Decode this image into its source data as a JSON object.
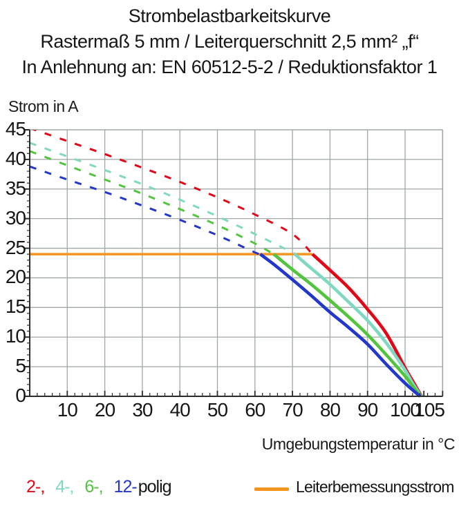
{
  "title": {
    "line1": "Strombelastbarkeitskurve",
    "line2": "Rastermaß 5 mm / Leiterquerschnitt 2,5 mm² „f“",
    "line3": "In Anlehnung an: EN 60512-5-2 / Reduktionsfaktor 1"
  },
  "chart_data": {
    "type": "line",
    "title": "Strombelastbarkeitskurve",
    "xlabel": "Umgebungstemperatur in °C",
    "ylabel": "Strom in A",
    "xlim": [
      0,
      110
    ],
    "ylim": [
      0,
      45
    ],
    "grid": {
      "x_lines": [
        10,
        20,
        30,
        40,
        50,
        60,
        70,
        80,
        90,
        100
      ],
      "y_lines": [
        5,
        10,
        15,
        20,
        25,
        30,
        35,
        40
      ]
    },
    "x_major_ticks": [
      10,
      20,
      30,
      40,
      50,
      60,
      70,
      80,
      90,
      100,
      105
    ],
    "y_major_ticks": [
      0,
      5,
      10,
      15,
      20,
      25,
      30,
      35,
      40,
      45
    ],
    "x_minor_step": 2,
    "y_minor_step": 1,
    "axis_color": "#2b2b2b",
    "grid_color": "#9fa8a4",
    "rated_current_line": {
      "label": "Leiterbemessungsstrom",
      "value_a": 24,
      "t_start_c": 0,
      "t_end_c": 75.3,
      "color": "#f5941f"
    },
    "series": [
      {
        "name": "2-polig",
        "color": "#e30617",
        "dashed_points": [
          [
            0,
            45.3
          ],
          [
            10,
            43.1
          ],
          [
            20,
            40.9
          ],
          [
            30,
            38.6
          ],
          [
            40,
            36.2
          ],
          [
            50,
            33.6
          ],
          [
            60,
            30.7
          ],
          [
            70,
            27.4
          ],
          [
            75.3,
            24
          ]
        ],
        "solid_points": [
          [
            75.3,
            24
          ],
          [
            80,
            21.3
          ],
          [
            85,
            18.3
          ],
          [
            90,
            14.7
          ],
          [
            95,
            10.6
          ],
          [
            100,
            4.8
          ],
          [
            102,
            2.6
          ],
          [
            104.4,
            0
          ]
        ]
      },
      {
        "name": "4-polig",
        "color": "#80d8c3",
        "dashed_points": [
          [
            0,
            42.8
          ],
          [
            10,
            40.5
          ],
          [
            20,
            38.2
          ],
          [
            30,
            35.8
          ],
          [
            40,
            33.2
          ],
          [
            50,
            30.4
          ],
          [
            60,
            27.4
          ],
          [
            70,
            24.3
          ],
          [
            70.6,
            24
          ]
        ],
        "solid_points": [
          [
            70.6,
            24
          ],
          [
            75,
            21.6
          ],
          [
            80,
            18.9
          ],
          [
            85,
            15.9
          ],
          [
            90,
            12.8
          ],
          [
            95,
            9.0
          ],
          [
            100,
            4.4
          ],
          [
            102,
            2.2
          ],
          [
            104.3,
            0
          ]
        ]
      },
      {
        "name": "6-polig",
        "color": "#52c43e",
        "dashed_points": [
          [
            0,
            41.4
          ],
          [
            10,
            39.0
          ],
          [
            20,
            36.6
          ],
          [
            30,
            34.2
          ],
          [
            40,
            31.6
          ],
          [
            50,
            28.9
          ],
          [
            60,
            25.8
          ],
          [
            65,
            24
          ]
        ],
        "solid_points": [
          [
            65,
            24
          ],
          [
            70,
            21.4
          ],
          [
            75,
            18.9
          ],
          [
            80,
            16.2
          ],
          [
            85,
            13.4
          ],
          [
            90,
            10.4
          ],
          [
            95,
            7.0
          ],
          [
            100,
            3.4
          ],
          [
            102,
            1.7
          ],
          [
            104.2,
            0
          ]
        ]
      },
      {
        "name": "12-polig",
        "color": "#2337cd",
        "dashed_points": [
          [
            0,
            38.8
          ],
          [
            10,
            36.6
          ],
          [
            20,
            34.5
          ],
          [
            30,
            32.2
          ],
          [
            40,
            29.8
          ],
          [
            50,
            27.2
          ],
          [
            60,
            24.3
          ],
          [
            61.4,
            24
          ]
        ],
        "solid_points": [
          [
            61.4,
            24
          ],
          [
            65,
            22.3
          ],
          [
            70,
            19.7
          ],
          [
            75,
            17.0
          ],
          [
            80,
            14.2
          ],
          [
            85,
            11.6
          ],
          [
            90,
            8.8
          ],
          [
            95,
            5.4
          ],
          [
            100,
            2.2
          ],
          [
            104,
            0
          ]
        ]
      }
    ]
  },
  "legend": {
    "pole_items": [
      {
        "label": "2-,",
        "color": "#e30617"
      },
      {
        "label": "4-,",
        "color": "#80d8c3"
      },
      {
        "label": "6-,",
        "color": "#52c43e"
      },
      {
        "label": "12-",
        "color": "#2337cd"
      }
    ],
    "suffix": "polig",
    "rated_label": "Leiterbemessungsstrom"
  }
}
